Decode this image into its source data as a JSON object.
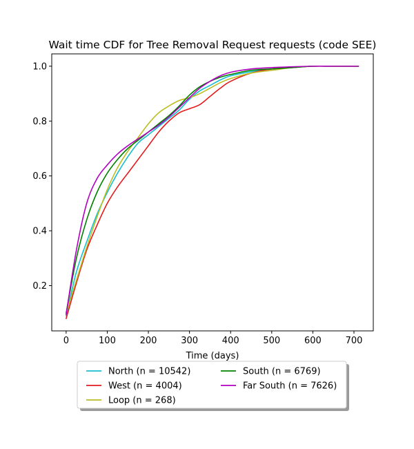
{
  "chart_data": {
    "type": "line",
    "title": "Wait time CDF for Tree Removal Request  requests (code SEE)",
    "xlabel": "Time (days)",
    "ylabel": "",
    "xlim": [
      -35,
      747
    ],
    "ylim": [
      0.035,
      1.045
    ],
    "xticks": [
      0,
      100,
      200,
      300,
      400,
      500,
      600,
      700
    ],
    "yticks": [
      0.2,
      0.4,
      0.6,
      0.8,
      1.0
    ],
    "yticklabels": [
      "0.2",
      "0.4",
      "0.6",
      "0.8",
      "1.0"
    ],
    "grid": false,
    "legend_placement": "below",
    "series": [
      {
        "name": "North (n = 10542)",
        "color": "#17becf",
        "x": [
          0,
          25,
          50,
          75,
          100,
          125,
          150,
          175,
          200,
          225,
          250,
          275,
          300,
          325,
          350,
          375,
          400,
          450,
          500,
          550,
          600,
          650,
          711
        ],
        "y": [
          0.09,
          0.25,
          0.36,
          0.46,
          0.54,
          0.61,
          0.67,
          0.72,
          0.75,
          0.78,
          0.81,
          0.84,
          0.88,
          0.91,
          0.93,
          0.95,
          0.965,
          0.98,
          0.99,
          0.995,
          1.0,
          1.0,
          1.0
        ]
      },
      {
        "name": "West (n = 4004)",
        "color": "#e41a1c",
        "x": [
          0,
          25,
          50,
          75,
          100,
          125,
          150,
          175,
          200,
          225,
          250,
          275,
          300,
          325,
          350,
          375,
          400,
          450,
          500,
          550,
          600,
          650,
          711
        ],
        "y": [
          0.08,
          0.21,
          0.33,
          0.42,
          0.5,
          0.56,
          0.61,
          0.66,
          0.71,
          0.76,
          0.8,
          0.83,
          0.845,
          0.86,
          0.89,
          0.92,
          0.945,
          0.975,
          0.99,
          0.995,
          1.0,
          1.0,
          1.0
        ]
      },
      {
        "name": "Loop (n = 268)",
        "color": "#bcbd22",
        "x": [
          0,
          25,
          50,
          75,
          100,
          125,
          150,
          175,
          200,
          225,
          250,
          275,
          300,
          325,
          350,
          375,
          400,
          450,
          500,
          550,
          600,
          650,
          711
        ],
        "y": [
          0.1,
          0.22,
          0.34,
          0.45,
          0.55,
          0.63,
          0.69,
          0.74,
          0.79,
          0.83,
          0.855,
          0.875,
          0.885,
          0.9,
          0.92,
          0.94,
          0.955,
          0.975,
          0.985,
          0.995,
          1.0,
          1.0,
          1.0
        ]
      },
      {
        "name": "South (n = 6769)",
        "color": "#008000",
        "x": [
          0,
          25,
          50,
          75,
          100,
          125,
          150,
          175,
          200,
          225,
          250,
          275,
          300,
          325,
          350,
          375,
          400,
          450,
          500,
          550,
          600,
          650,
          711
        ],
        "y": [
          0.1,
          0.3,
          0.44,
          0.54,
          0.61,
          0.66,
          0.7,
          0.73,
          0.76,
          0.79,
          0.82,
          0.855,
          0.895,
          0.925,
          0.945,
          0.96,
          0.97,
          0.985,
          0.99,
          0.995,
          1.0,
          1.0,
          1.0
        ]
      },
      {
        "name": "Far South (n = 7626)",
        "color": "#b000c0",
        "x": [
          0,
          25,
          50,
          75,
          100,
          125,
          150,
          175,
          200,
          225,
          250,
          275,
          300,
          325,
          350,
          375,
          400,
          450,
          500,
          550,
          600,
          650,
          711
        ],
        "y": [
          0.095,
          0.33,
          0.5,
          0.59,
          0.64,
          0.68,
          0.71,
          0.735,
          0.76,
          0.785,
          0.815,
          0.85,
          0.885,
          0.92,
          0.945,
          0.965,
          0.978,
          0.99,
          0.995,
          0.998,
          1.0,
          1.0,
          1.0
        ]
      }
    ]
  }
}
